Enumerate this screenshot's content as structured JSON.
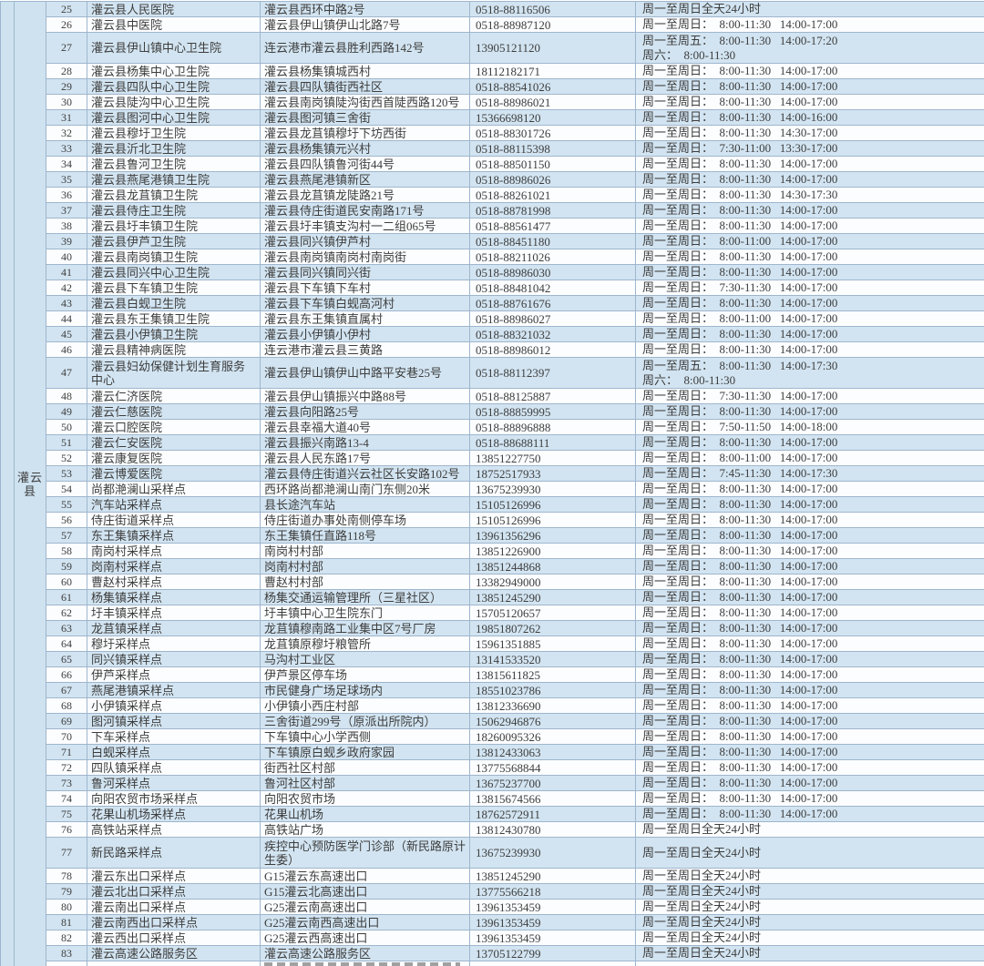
{
  "colors": {
    "row_blue": "#d2e4f1",
    "row_white": "#fcfdfe",
    "border": "#9eb6ce",
    "text": "#3d3d3d",
    "merged_cell_blue": "#cfe2f0"
  },
  "table": {
    "county": "灌云县",
    "rows": [
      {
        "no": "25",
        "name": "灌云县人民医院",
        "address": "灌云县西环中路2号",
        "phone": "0518-88116506",
        "hours": [
          "周一至周日全天24小时"
        ]
      },
      {
        "no": "26",
        "name": "灌云县中医院",
        "address": "灌云县伊山镇伊山北路7号",
        "phone": "0518-88987120",
        "hours": [
          "周一至周日：  8:00-11:30   14:00-17:00"
        ]
      },
      {
        "no": "27",
        "tall": true,
        "name": "灌云县伊山镇中心卫生院",
        "address": "连云港市灌云县胜利西路142号",
        "phone": "13905121120",
        "hours": [
          "周一至周五：  8:00-11:30   14:00-17:20",
          "周六：  8:00-11:30"
        ]
      },
      {
        "no": "28",
        "name": "灌云县杨集中心卫生院",
        "address": "灌云县杨集镇城西村",
        "phone": "18112182171",
        "hours": [
          "周一至周日：  8:00-11:30   14:00-17:00"
        ]
      },
      {
        "no": "29",
        "name": "灌云县四队中心卫生院",
        "address": "灌云县四队镇街西社区",
        "phone": "0518-88541026",
        "hours": [
          "周一至周日：  8:00-11:30   14:00-17:00"
        ]
      },
      {
        "no": "30",
        "name": "灌云县陡沟中心卫生院",
        "address": "灌云县南岗镇陡沟街西首陡西路120号",
        "phone": "0518-88986021",
        "hours": [
          "周一至周日：  8:00-11:30   14:00-17:00"
        ]
      },
      {
        "no": "31",
        "name": "灌云县图河中心卫生院",
        "address": "灌云县图河镇三舍街",
        "phone": "15366698120",
        "hours": [
          "周一至周日：  8:00-11:30   14:00-16:00"
        ]
      },
      {
        "no": "32",
        "name": "灌云县穆圩卫生院",
        "address": "灌云县龙苴镇穆圩下坊西街",
        "phone": "0518-88301726",
        "hours": [
          "周一至周日：  8:00-11:30   14:30-17:00"
        ]
      },
      {
        "no": "33",
        "name": "灌云县沂北卫生院",
        "address": "灌云县杨集镇元兴村",
        "phone": "0518-88115398",
        "hours": [
          "周一至周日：  7:30-11:00   13:30-17:00"
        ]
      },
      {
        "no": "34",
        "name": "灌云县鲁河卫生院",
        "address": "灌云县四队镇鲁河街44号",
        "phone": "0518-88501150",
        "hours": [
          "周一至周日：  8:00-11:30   14:00-17:00"
        ]
      },
      {
        "no": "35",
        "name": "灌云县燕尾港镇卫生院",
        "address": "灌云县燕尾港镇新区",
        "phone": "0518-88986026",
        "hours": [
          "周一至周日：  8:00-11:30   14:00-17:00"
        ]
      },
      {
        "no": "36",
        "name": "灌云县龙苴镇卫生院",
        "address": "灌云县龙苴镇龙陡路21号",
        "phone": "0518-88261021",
        "hours": [
          "周一至周日：  8:00-11:30   14:30-17:30"
        ]
      },
      {
        "no": "37",
        "name": "灌云县侍庄卫生院",
        "address": "灌云县侍庄街道民安南路171号",
        "phone": "0518-88781998",
        "hours": [
          "周一至周日：  8:00-11:30   14:00-17:00"
        ]
      },
      {
        "no": "38",
        "name": "灌云县圩丰镇卫生院",
        "address": "灌云县圩丰镇支沟村一二组065号",
        "phone": "0518-88561477",
        "hours": [
          "周一至周日：  8:00-11:30   14:00-17:00"
        ]
      },
      {
        "no": "39",
        "name": "灌云县伊芦卫生院",
        "address": "灌云县同兴镇伊芦村",
        "phone": "0518-88451180",
        "hours": [
          "周一至周日：  8:00-11:00   14:00-17:00"
        ]
      },
      {
        "no": "40",
        "name": "灌云县南岗镇卫生院",
        "address": "灌云县南岗镇南岗村南岗街",
        "phone": "0518-88211026",
        "hours": [
          "周一至周日：  8:00-11:30   14:00-17:00"
        ]
      },
      {
        "no": "41",
        "name": "灌云县同兴中心卫生院",
        "address": "灌云县同兴镇同兴街",
        "phone": "0518-88986030",
        "hours": [
          "周一至周日：  8:00-11:30   14:00-17:00"
        ]
      },
      {
        "no": "42",
        "name": "灌云县下车镇卫生院",
        "address": "灌云县下车镇下车村",
        "phone": "0518-88481042",
        "hours": [
          "周一至周日：  7:30-11:30   14:00-17:00"
        ]
      },
      {
        "no": "43",
        "name": "灌云县白蚬卫生院",
        "address": "灌云县下车镇白蚬高河村",
        "phone": "0518-88761676",
        "hours": [
          "周一至周日：  8:00-11:30   14:00-17:00"
        ]
      },
      {
        "no": "44",
        "name": "灌云县东王集镇卫生院",
        "address": "灌云县东王集镇直属村",
        "phone": "0518-88986027",
        "hours": [
          "周一至周日：  8:00-11:00   14:00-17:00"
        ]
      },
      {
        "no": "45",
        "name": "灌云县小伊镇卫生院",
        "address": "灌云县小伊镇小伊村",
        "phone": "0518-88321032",
        "hours": [
          "周一至周日：  8:00-11:30   14:00-17:00"
        ]
      },
      {
        "no": "46",
        "name": "灌云县精神病医院",
        "address": "连云港市灌云县三黄路",
        "phone": "0518-88986012",
        "hours": [
          "周一至周日：  8:00-11:30   14:00-17:00"
        ]
      },
      {
        "no": "47",
        "tall": true,
        "name": "灌云县妇幼保健计划生育服务中心",
        "address": "灌云县伊山镇伊山中路平安巷25号",
        "phone": "0518-88112397",
        "hours": [
          "周一至周五：  8:00-11:30   14:00-17:30",
          "周六：  8:00-11:30"
        ]
      },
      {
        "no": "48",
        "name": "灌云仁济医院",
        "address": "灌云县伊山镇振兴中路88号",
        "phone": "0518-88125887",
        "hours": [
          "周一至周日：  7:30-11:30   14:00-17:00"
        ]
      },
      {
        "no": "49",
        "name": "灌云仁慈医院",
        "address": "灌云县向阳路25号",
        "phone": "0518-88859995",
        "hours": [
          "周一至周日：  8:00-11:30   14:00-17:00"
        ]
      },
      {
        "no": "50",
        "name": "灌云口腔医院",
        "address": "灌云县幸福大道40号",
        "phone": "0518-88896888",
        "hours": [
          "周一至周日：  7:50-11:50   14:00-18:00"
        ]
      },
      {
        "no": "51",
        "name": "灌云仁安医院",
        "address": "灌云县振兴南路13-4",
        "phone": "0518-88688111",
        "hours": [
          "周一至周日：  8:00-11:30   14:00-17:00"
        ]
      },
      {
        "no": "52",
        "name": "灌云康复医院",
        "address": "灌云县人民东路17号",
        "phone": "13851227750",
        "hours": [
          "周一至周日：  8:00-11:00   14:00-17:00"
        ]
      },
      {
        "no": "53",
        "name": "灌云博爱医院",
        "address": "灌云县侍庄街道兴云社区长安路102号",
        "phone": "18752517933",
        "hours": [
          "周一至周日：  7:45-11:30   14:00-17:30"
        ]
      },
      {
        "no": "54",
        "name": "尚都滟澜山采样点",
        "address": "西环路尚都滟澜山南门东侧20米",
        "phone": "13675239930",
        "hours": [
          "周一至周日：  8:00-11:30   14:00-17:00"
        ]
      },
      {
        "no": "55",
        "name": "汽车站采样点",
        "address": "县长途汽车站",
        "phone": "15105126996",
        "hours": [
          "周一至周日：  8:00-11:30   14:00-17:00"
        ]
      },
      {
        "no": "56",
        "name": "侍庄街道采样点",
        "address": "侍庄街道办事处南侧停车场",
        "phone": "15105126996",
        "hours": [
          "周一至周日：  8:00-11:30   14:00-17:00"
        ]
      },
      {
        "no": "57",
        "name": "东王集镇采样点",
        "address": "东王集镇任直路118号",
        "phone": "13961356296",
        "hours": [
          "周一至周日：  8:00-11:30   14:00-17:00"
        ]
      },
      {
        "no": "58",
        "name": "南岗村采样点",
        "address": "南岗村村部",
        "phone": "13851226900",
        "hours": [
          "周一至周日：  8:00-11:30   14:00-17:00"
        ]
      },
      {
        "no": "59",
        "name": "岗南村采样点",
        "address": "岗南村村部",
        "phone": "13851244868",
        "hours": [
          "周一至周日：  8:00-11:30   14:00-17:00"
        ]
      },
      {
        "no": "60",
        "name": "曹赵村采样点",
        "address": "曹赵村村部",
        "phone": "13382949000",
        "hours": [
          "周一至周日：  8:00-11:30   14:00-17:00"
        ]
      },
      {
        "no": "61",
        "name": "杨集镇采样点",
        "address": "杨集交通运输管理所（三星社区）",
        "phone": "13851245290",
        "hours": [
          "周一至周日：  8:00-11:30   14:00-17:00"
        ]
      },
      {
        "no": "62",
        "name": "圩丰镇采样点",
        "address": "圩丰镇中心卫生院东门",
        "phone": "15705120657",
        "hours": [
          "周一至周日：  8:00-11:30   14:00-17:00"
        ]
      },
      {
        "no": "63",
        "name": "龙苴镇采样点",
        "address": "龙苴镇穆南路工业集中区7号厂房",
        "phone": "19851807262",
        "hours": [
          "周一至周日：  8:00-11:30   14:00-17:00"
        ]
      },
      {
        "no": "64",
        "name": "穆圩采样点",
        "address": "龙苴镇原穆圩粮管所",
        "phone": "15961351885",
        "hours": [
          "周一至周日：  8:00-11:30   14:00-17:00"
        ]
      },
      {
        "no": "65",
        "name": "同兴镇采样点",
        "address": "马沟村工业区",
        "phone": "13141533520",
        "hours": [
          "周一至周日：  8:00-11:30   14:00-17:00"
        ]
      },
      {
        "no": "66",
        "name": "伊芦采样点",
        "address": "伊芦景区停车场",
        "phone": "13815611825",
        "hours": [
          "周一至周日：  8:00-11:30   14:00-17:00"
        ]
      },
      {
        "no": "67",
        "name": "燕尾港镇采样点",
        "address": "市民健身广场足球场内",
        "phone": "18551023786",
        "hours": [
          "周一至周日：  8:00-11:30   14:00-17:00"
        ]
      },
      {
        "no": "68",
        "name": "小伊镇采样点",
        "address": "小伊镇小西庄村部",
        "phone": "13812336690",
        "hours": [
          "周一至周日：  8:00-11:30   14:00-17:00"
        ]
      },
      {
        "no": "69",
        "name": "图河镇采样点",
        "address": "三舍街道299号（原派出所院内）",
        "phone": "15062946876",
        "hours": [
          "周一至周日：  8:00-11:30   14:00-17:00"
        ]
      },
      {
        "no": "70",
        "name": "下车采样点",
        "address": "下车镇中心小学西侧",
        "phone": "18260095326",
        "hours": [
          "周一至周日：  8:00-11:30   14:00-17:00"
        ]
      },
      {
        "no": "71",
        "name": "白蚬采样点",
        "address": "下车镇原白蚬乡政府家园",
        "phone": "13812433063",
        "hours": [
          "周一至周日：  8:00-11:30   14:00-17:00"
        ]
      },
      {
        "no": "72",
        "name": "四队镇采样点",
        "address": "街西社区村部",
        "phone": "13775568844",
        "hours": [
          "周一至周日：  8:00-11:30   14:00-17:00"
        ]
      },
      {
        "no": "73",
        "name": "鲁河采样点",
        "address": "鲁河社区村部",
        "phone": "13675237700",
        "hours": [
          "周一至周日：  8:00-11:30   14:00-17:00"
        ]
      },
      {
        "no": "74",
        "name": "向阳农贸市场采样点",
        "address": "向阳农贸市场",
        "phone": "13815674566",
        "hours": [
          "周一至周日：  8:00-11:30   14:00-17:00"
        ]
      },
      {
        "no": "75",
        "name": "花果山机场采样点",
        "address": "花果山机场",
        "phone": "18762572911",
        "hours": [
          "周一至周日：  8:00-11:30   14:00-17:00"
        ]
      },
      {
        "no": "76",
        "name": "高铁站采样点",
        "address": "高铁站广场",
        "phone": "13812430780",
        "hours": [
          "周一至周日全天24小时"
        ]
      },
      {
        "no": "77",
        "tall": true,
        "name": "新民路采样点",
        "address": "疾控中心预防医学门诊部（新民路原计生委）",
        "phone": "13675239930",
        "hours": [
          "周一至周日全天24小时"
        ]
      },
      {
        "no": "78",
        "name": "灌云东出口采样点",
        "address": "G15灌云东高速出口",
        "phone": "13851245290",
        "hours": [
          "周一至周日全天24小时"
        ]
      },
      {
        "no": "79",
        "name": "灌云北出口采样点",
        "address": "G15灌云北高速出口",
        "phone": "13775566218",
        "hours": [
          "周一至周日全天24小时"
        ]
      },
      {
        "no": "80",
        "name": "灌云南出口采样点",
        "address": "G25灌云南高速出口",
        "phone": "13961353459",
        "hours": [
          "周一至周日全天24小时"
        ]
      },
      {
        "no": "81",
        "name": "灌云南西出口采样点",
        "address": "G25灌云南西高速出口",
        "phone": "13961353459",
        "hours": [
          "周一至周日全天24小时"
        ]
      },
      {
        "no": "82",
        "name": "灌云西出口采样点",
        "address": "G25灌云西高速出口",
        "phone": "13961353459",
        "hours": [
          "周一至周日全天24小时"
        ]
      },
      {
        "no": "83",
        "name": "灌云高速公路服务区",
        "address": "灌云高速公路服务区",
        "phone": "13705122799",
        "hours": [
          "周一至周日全天24小时"
        ]
      }
    ]
  }
}
